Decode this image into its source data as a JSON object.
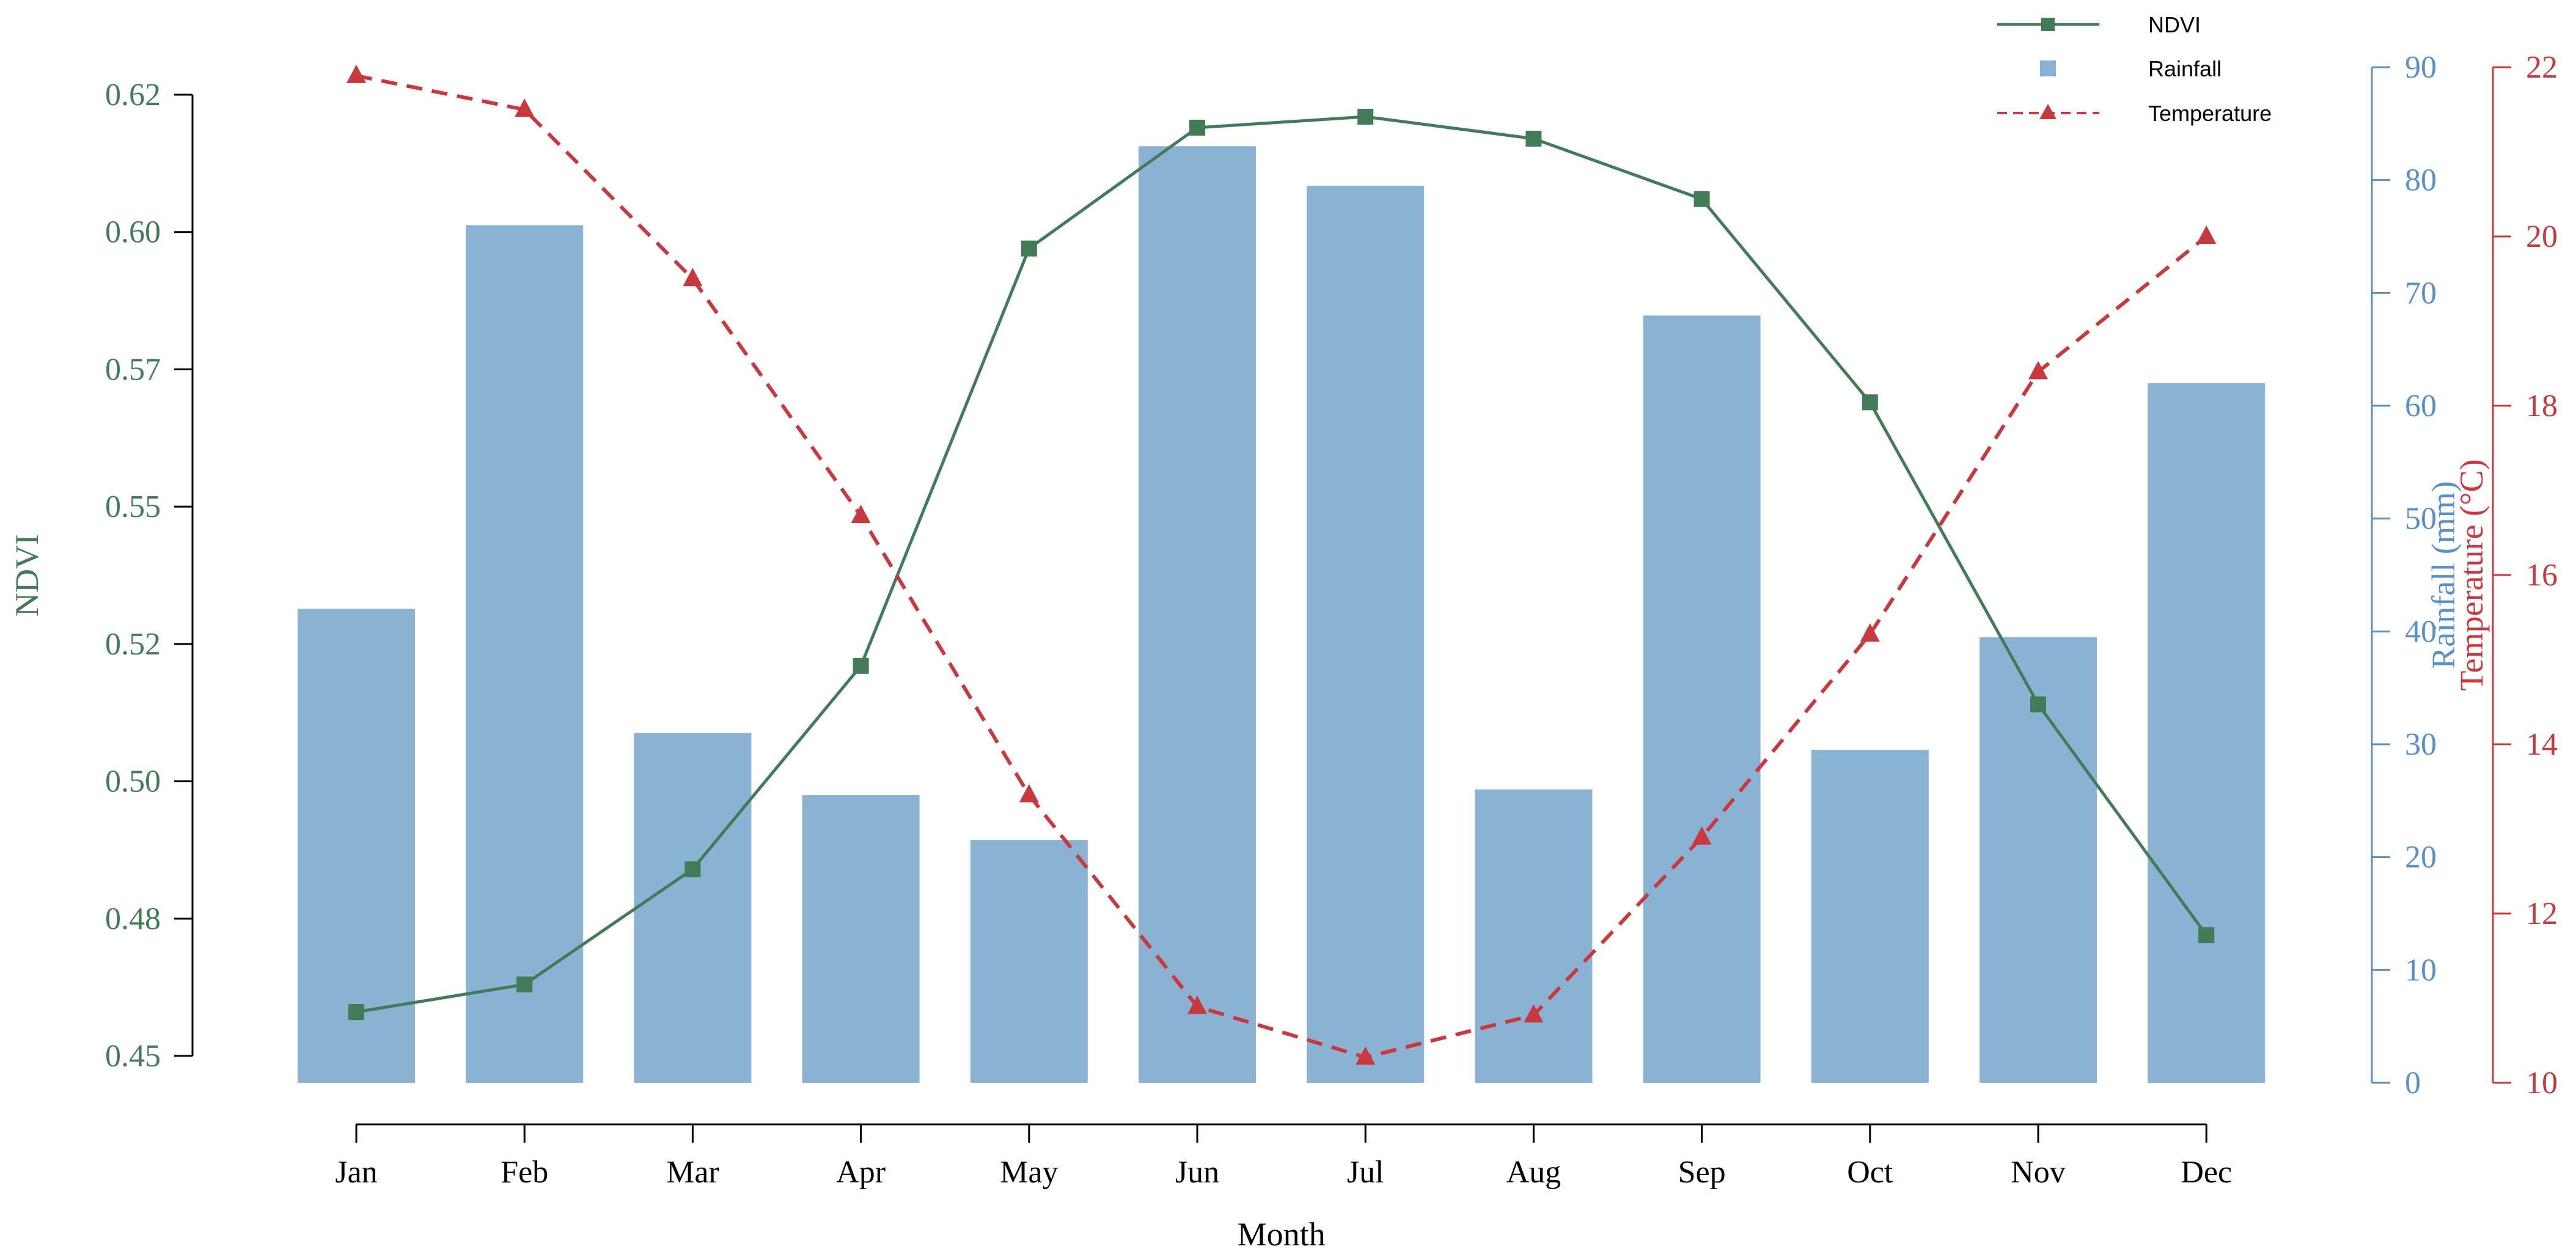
{
  "chart_data": {
    "type": "bar",
    "xlabel": "Month",
    "categories": [
      "Jan",
      "Feb",
      "Mar",
      "Apr",
      "May",
      "Jun",
      "Jul",
      "Aug",
      "Sep",
      "Oct",
      "Nov",
      "Dec"
    ],
    "axes": {
      "ndvi": {
        "label": "NDVI",
        "range": [
          0.45,
          0.62
        ],
        "ticks": [
          0.45,
          0.475,
          0.5,
          0.525,
          0.55,
          0.575,
          0.6,
          0.625
        ],
        "tick_labels": [
          "0.45",
          "0.48",
          "0.50",
          "0.52",
          "0.55",
          "0.57",
          "0.60",
          "0.62"
        ]
      },
      "rainfall": {
        "label": "Rainfall (mm)",
        "range": [
          0,
          90
        ],
        "ticks": [
          0,
          10,
          20,
          30,
          40,
          50,
          60,
          70,
          80,
          90
        ],
        "tick_labels": [
          "0",
          "10",
          "20",
          "30",
          "40",
          "50",
          "60",
          "70",
          "80",
          "90"
        ]
      },
      "temperature": {
        "label": "Temperature (°C)",
        "range": [
          10,
          22
        ],
        "ticks": [
          10,
          12,
          14,
          16,
          18,
          20,
          22
        ],
        "tick_labels": [
          "10",
          "12",
          "14",
          "16",
          "18",
          "20",
          "22"
        ]
      }
    },
    "series": [
      {
        "name": "NDVI",
        "type": "line",
        "axis": "ndvi",
        "marker": "square",
        "values": [
          0.458,
          0.463,
          0.484,
          0.521,
          0.597,
          0.619,
          0.621,
          0.617,
          0.606,
          0.569,
          0.514,
          0.472
        ]
      },
      {
        "name": "Rainfall",
        "type": "bar",
        "axis": "rainfall",
        "values": [
          42,
          76,
          31,
          25.5,
          21.5,
          83,
          79.5,
          26,
          68,
          29.5,
          39.5,
          62
        ]
      },
      {
        "name": "Temperature",
        "type": "line",
        "axis": "temperature",
        "marker": "triangle",
        "dashed": true,
        "values": [
          21.9,
          21.5,
          19.5,
          16.7,
          13.4,
          10.9,
          10.3,
          10.8,
          12.9,
          15.3,
          18.4,
          20.0
        ]
      }
    ],
    "legend_position": "top-right",
    "grid": false
  },
  "colors": {
    "ndvi": "#437a57",
    "rainfall_bar": "#8cb2d3",
    "rainfall_axis": "#5b8fc7",
    "temperature": "#c8393f",
    "axis": "#000000"
  }
}
